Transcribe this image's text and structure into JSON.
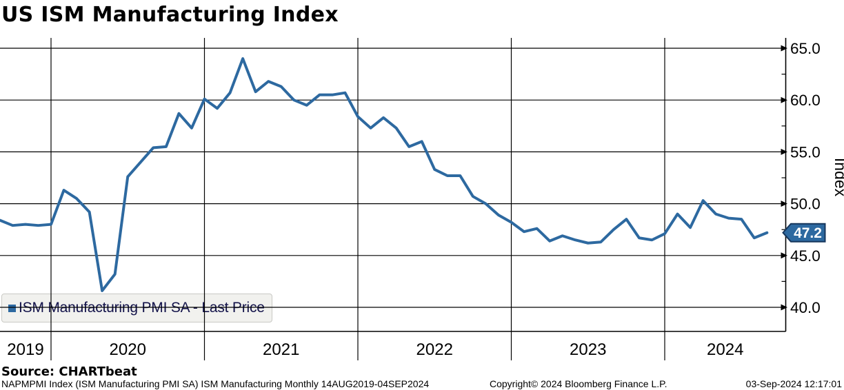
{
  "title": "US ISM Manufacturing Index",
  "legend": {
    "label": "ISM Manufacturing PMI SA - Last Price"
  },
  "footer": {
    "source": "Source: CHARTbeat",
    "description": "NAPMPMI Index (ISM Manufacturing PMI SA) ISM Manufacturing  Monthly 14AUG2019-04SEP2024",
    "copyright": "Copyright© 2024 Bloomberg Finance L.P.",
    "datetime": "03-Sep-2024 12:17:01"
  },
  "colors": {
    "line": "#2d69a0",
    "badge_fill": "#2d69a0",
    "badge_border": "#16365c",
    "grid": "#000000",
    "legend_bg": "#f1f1ee",
    "legend_text": "#13134a"
  },
  "chart_data": {
    "type": "line",
    "title": "US ISM Manufacturing Index",
    "series_name": "ISM Manufacturing PMI SA - Last Price",
    "frequency": "Monthly",
    "date_range": "14AUG2019-04SEP2024",
    "last_price": 47.2,
    "last_price_label": "47.2",
    "x": [
      "2019-08",
      "2019-09",
      "2019-10",
      "2019-11",
      "2019-12",
      "2020-01",
      "2020-02",
      "2020-03",
      "2020-04",
      "2020-05",
      "2020-06",
      "2020-07",
      "2020-08",
      "2020-09",
      "2020-10",
      "2020-11",
      "2020-12",
      "2021-01",
      "2021-02",
      "2021-03",
      "2021-04",
      "2021-05",
      "2021-06",
      "2021-07",
      "2021-08",
      "2021-09",
      "2021-10",
      "2021-11",
      "2021-12",
      "2022-01",
      "2022-02",
      "2022-03",
      "2022-04",
      "2022-05",
      "2022-06",
      "2022-07",
      "2022-08",
      "2022-09",
      "2022-10",
      "2022-11",
      "2022-12",
      "2023-01",
      "2023-02",
      "2023-03",
      "2023-04",
      "2023-05",
      "2023-06",
      "2023-07",
      "2023-08",
      "2023-09",
      "2023-10",
      "2023-11",
      "2023-12",
      "2024-01",
      "2024-02",
      "2024-03",
      "2024-04",
      "2024-05",
      "2024-06",
      "2024-07",
      "2024-08"
    ],
    "values": [
      48.4,
      47.9,
      48.0,
      47.9,
      48.0,
      51.3,
      50.5,
      49.2,
      41.6,
      43.2,
      52.6,
      54.0,
      55.4,
      55.5,
      58.7,
      57.3,
      60.1,
      59.2,
      60.7,
      64.0,
      60.8,
      61.8,
      61.3,
      60.0,
      59.5,
      60.5,
      60.5,
      60.7,
      58.4,
      57.3,
      58.3,
      57.3,
      55.5,
      56.0,
      53.3,
      52.7,
      52.7,
      50.7,
      50.0,
      48.9,
      48.2,
      47.3,
      47.6,
      46.4,
      46.9,
      46.5,
      46.2,
      46.3,
      47.5,
      48.5,
      46.7,
      46.5,
      47.1,
      49.0,
      47.7,
      50.3,
      49.0,
      48.6,
      48.5,
      46.7,
      47.2
    ],
    "y_axis": {
      "title": "Index",
      "ticks": [
        40,
        45,
        50,
        55,
        60,
        65
      ],
      "tick_labels": [
        "40.0",
        "45.0",
        "50.0",
        "55.0",
        "60.0",
        "65.0"
      ],
      "minor_ticks": [
        42.5,
        47.5,
        52.5,
        57.5,
        62.5
      ],
      "range": [
        37.7,
        65.0
      ],
      "side": "right"
    },
    "x_axis": {
      "year_labels": [
        "2019",
        "2020",
        "2021",
        "2022",
        "2023",
        "2024"
      ],
      "year_boundaries": [
        "2020-01",
        "2021-01",
        "2022-01",
        "2023-01",
        "2024-01"
      ]
    },
    "grid": true,
    "legend_position": "bottom-left"
  }
}
